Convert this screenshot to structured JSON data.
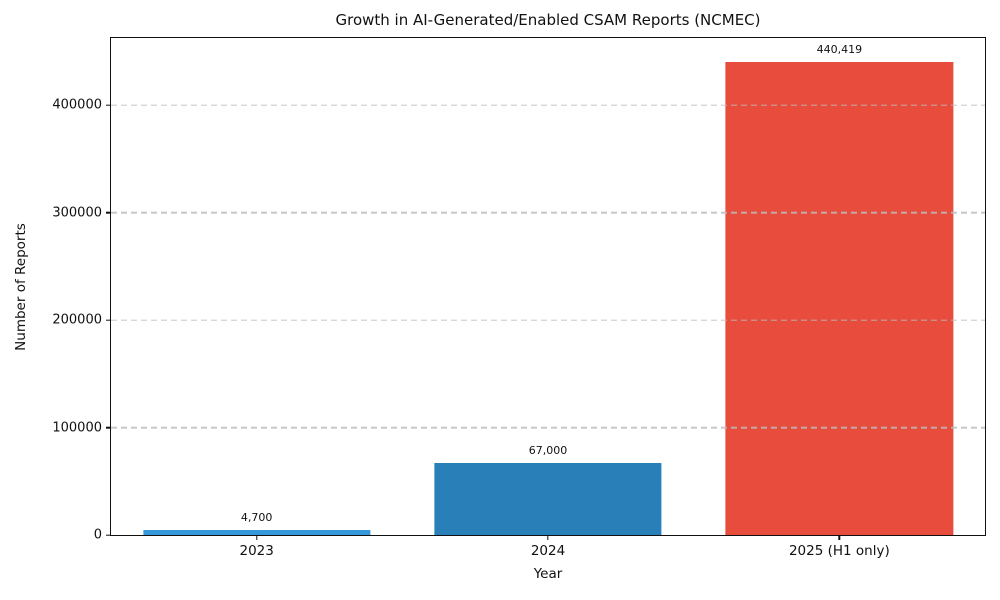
{
  "chart_data": {
    "type": "bar",
    "title": "Growth in AI-Generated/Enabled CSAM Reports (NCMEC)",
    "xlabel": "Year",
    "ylabel": "Number of Reports",
    "categories": [
      "2023",
      "2024",
      "2025 (H1 only)"
    ],
    "values": [
      4700,
      67000,
      440419
    ],
    "bar_labels": [
      "4,700",
      "67,000",
      "440,419"
    ],
    "bar_colors": [
      "#3498db",
      "#2980b9",
      "#e74c3c"
    ],
    "bar_width_fraction": 0.78,
    "ylim": [
      0,
      462440
    ],
    "yticks": [
      0,
      100000,
      200000,
      300000,
      400000
    ],
    "ytick_labels": [
      "0",
      "100000",
      "200000",
      "300000",
      "400000"
    ],
    "grid": "horizontal-dashed-above-bars",
    "legend": "none"
  },
  "colors": {
    "background": "#ffffff",
    "spine": "#111111",
    "grid": "#bcbcbc",
    "text": "#111111"
  }
}
